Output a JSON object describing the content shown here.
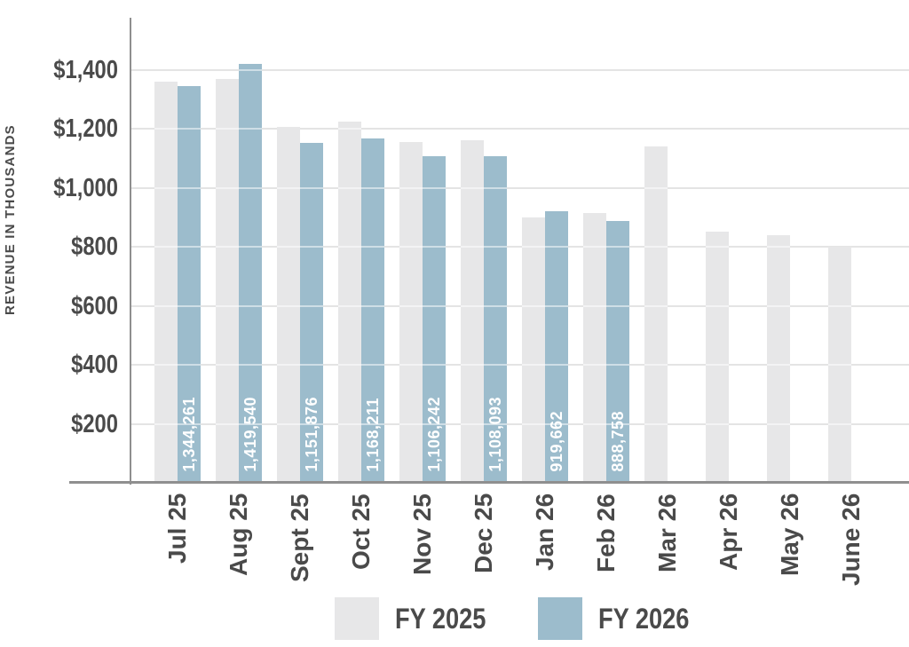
{
  "chart_data": {
    "type": "bar",
    "title": "",
    "xlabel": "",
    "ylabel": "REVENUE IN THOUSANDS",
    "values_unit": "USD thousands",
    "categories": [
      "Jul 25",
      "Aug 25",
      "Sept 25",
      "Oct 25",
      "Nov 25",
      "Dec 25",
      "Jan 26",
      "Feb 26",
      "Mar 26",
      "Apr 26",
      "May 26",
      "June 26"
    ],
    "series": [
      {
        "name": "FY 2025",
        "color": "#e7e7e8",
        "values": [
          1360,
          1370,
          1205,
          1225,
          1155,
          1160,
          900,
          915,
          1140,
          850,
          840,
          800
        ]
      },
      {
        "name": "FY 2026",
        "color": "#9cbccc",
        "values": [
          1344.261,
          1419.54,
          1151.876,
          1168.211,
          1106.242,
          1108.093,
          919.662,
          888.758,
          null,
          null,
          null,
          null
        ],
        "bar_labels": [
          "1,344,261",
          "1,419,540",
          "1,151,876",
          "1,168,211",
          "1,106,242",
          "1,108,093",
          "919,662",
          "888,758",
          null,
          null,
          null,
          null
        ]
      }
    ],
    "y_ticks": [
      {
        "value": 1400,
        "label": "$1,400"
      },
      {
        "value": 1200,
        "label": "$1,200"
      },
      {
        "value": 1000,
        "label": "$1,000"
      },
      {
        "value": 800,
        "label": "$800"
      },
      {
        "value": 600,
        "label": "$600"
      },
      {
        "value": 400,
        "label": "$400"
      },
      {
        "value": 200,
        "label": "$200"
      }
    ],
    "ylim": [
      0,
      1576
    ],
    "grid": "horizontal",
    "legend_position": "bottom"
  },
  "legend": {
    "items": [
      {
        "label": "FY 2025",
        "color": "#e7e7e8"
      },
      {
        "label": "FY 2026",
        "color": "#9cbccc"
      }
    ]
  },
  "colors": {
    "background": "#ffffff",
    "axis_line": "#8f8f8f",
    "gridline": "#e4e4e4",
    "text": "#4a4a4a",
    "bar_label_text": "#ffffff"
  }
}
